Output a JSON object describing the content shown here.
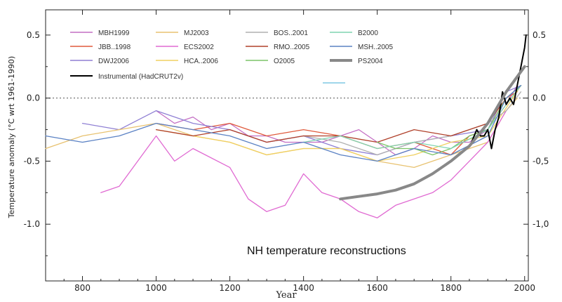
{
  "chart_data": {
    "type": "line",
    "title": "",
    "annotation": "NH temperature reconstructions",
    "xlabel": "Year",
    "ylabel": "Temperature anomaly (°C wrt 1961-1990)",
    "xlim": [
      700,
      2010
    ],
    "ylim": [
      -1.45,
      0.7
    ],
    "xticks": [
      800,
      1000,
      1200,
      1400,
      1600,
      1800,
      2000
    ],
    "xtick_labels": [
      "800",
      "1000",
      "1200",
      "1400",
      "1600",
      "1800",
      "2000"
    ],
    "yticks": [
      0.5,
      0.0,
      -0.5,
      -1.0
    ],
    "ytick_labels_left": [
      "0.5",
      "0.0",
      "-0.5",
      "-1.0"
    ],
    "ytick_labels_right": [
      "0.5",
      "0.0",
      "-0,5",
      "-1,0"
    ],
    "zero_line": "dotted",
    "legend_position": "top-left",
    "series": [
      {
        "name": "MBH1999",
        "color": "#c46fc4",
        "x": [
          1000,
          1050,
          1100,
          1150,
          1200,
          1250,
          1300,
          1350,
          1400,
          1450,
          1500,
          1550,
          1600,
          1650,
          1700,
          1750,
          1800,
          1850,
          1900,
          1950,
          1980
        ],
        "y": [
          -0.1,
          -0.2,
          -0.15,
          -0.25,
          -0.2,
          -0.3,
          -0.3,
          -0.35,
          -0.35,
          -0.35,
          -0.3,
          -0.25,
          -0.35,
          -0.45,
          -0.4,
          -0.3,
          -0.35,
          -0.35,
          -0.25,
          -0.05,
          0.1
        ]
      },
      {
        "name": "JBB..1998",
        "color": "#e05a3c",
        "x": [
          1000,
          1100,
          1200,
          1300,
          1400,
          1500,
          1600,
          1700,
          1800,
          1850,
          1900,
          1950,
          1980
        ],
        "y": [
          -0.2,
          -0.25,
          -0.2,
          -0.3,
          -0.25,
          -0.3,
          -0.4,
          -0.35,
          -0.45,
          -0.3,
          -0.25,
          0.0,
          0.05
        ]
      },
      {
        "name": "DWJ2006",
        "color": "#8f7fd4",
        "x": [
          800,
          900,
          1000,
          1100,
          1200,
          1300,
          1400,
          1500,
          1600,
          1700,
          1800,
          1900,
          1950,
          1990
        ],
        "y": [
          -0.2,
          -0.25,
          -0.1,
          -0.2,
          -0.25,
          -0.35,
          -0.3,
          -0.4,
          -0.45,
          -0.35,
          -0.3,
          -0.25,
          0.05,
          0.1
        ]
      },
      {
        "name": "MJ2003",
        "color": "#e8c270",
        "x": [
          700,
          800,
          900,
          1000,
          1100,
          1200,
          1300,
          1400,
          1500,
          1600,
          1700,
          1800,
          1900,
          1950,
          1980
        ],
        "y": [
          -0.4,
          -0.3,
          -0.25,
          -0.2,
          -0.3,
          -0.35,
          -0.45,
          -0.4,
          -0.4,
          -0.5,
          -0.55,
          -0.45,
          -0.35,
          -0.1,
          0.0
        ]
      },
      {
        "name": "ECS2002",
        "color": "#e06ad2",
        "x": [
          850,
          900,
          1000,
          1050,
          1100,
          1200,
          1250,
          1300,
          1350,
          1400,
          1450,
          1500,
          1550,
          1600,
          1650,
          1700,
          1750,
          1800,
          1850,
          1900,
          1950
        ],
        "y": [
          -0.75,
          -0.7,
          -0.3,
          -0.5,
          -0.4,
          -0.55,
          -0.8,
          -0.9,
          -0.85,
          -0.6,
          -0.75,
          -0.8,
          -0.9,
          -0.95,
          -0.85,
          -0.8,
          -0.75,
          -0.65,
          -0.5,
          -0.35,
          -0.1
        ]
      },
      {
        "name": "HCA..2006",
        "color": "#f0d060",
        "x": [
          1000,
          1100,
          1200,
          1300,
          1400,
          1500,
          1600,
          1700,
          1800,
          1900,
          1990
        ],
        "y": [
          -0.25,
          -0.3,
          -0.35,
          -0.45,
          -0.4,
          -0.4,
          -0.5,
          -0.45,
          -0.35,
          -0.3,
          0.1
        ]
      },
      {
        "name": "BOS..2001",
        "color": "#b0b0b0",
        "x": [
          1400,
          1500,
          1600,
          1700,
          1800,
          1900,
          1950,
          1990
        ],
        "y": [
          -0.3,
          -0.35,
          -0.45,
          -0.35,
          -0.3,
          -0.2,
          -0.1,
          0.05
        ]
      },
      {
        "name": "RMO..2005",
        "color": "#b0402a",
        "x": [
          1000,
          1100,
          1200,
          1300,
          1400,
          1500,
          1600,
          1700,
          1800,
          1900,
          1950,
          1990
        ],
        "y": [
          -0.25,
          -0.3,
          -0.25,
          -0.35,
          -0.3,
          -0.3,
          -0.35,
          -0.25,
          -0.3,
          -0.2,
          0.0,
          0.1
        ]
      },
      {
        "name": "O2005",
        "color": "#7cc468",
        "x": [
          1600,
          1650,
          1700,
          1750,
          1800,
          1850,
          1900,
          1950,
          1990
        ],
        "y": [
          -0.35,
          -0.4,
          -0.4,
          -0.45,
          -0.4,
          -0.3,
          -0.25,
          0.0,
          0.1
        ]
      },
      {
        "name": "B2000",
        "color": "#7fd4b0",
        "x": [
          1400,
          1500,
          1600,
          1700,
          1800,
          1900,
          1950,
          1990
        ],
        "y": [
          -0.35,
          -0.3,
          -0.4,
          -0.35,
          -0.4,
          -0.25,
          -0.05,
          0.1
        ]
      },
      {
        "name": "MSH..2005",
        "color": "#5b82c4",
        "x": [
          700,
          800,
          900,
          1000,
          1100,
          1200,
          1300,
          1400,
          1500,
          1600,
          1700,
          1800,
          1900,
          1950,
          1990
        ],
        "y": [
          -0.3,
          -0.35,
          -0.3,
          -0.2,
          -0.25,
          -0.3,
          -0.4,
          -0.35,
          -0.45,
          -0.5,
          -0.4,
          -0.45,
          -0.3,
          0.0,
          0.1
        ]
      },
      {
        "name": "PS2004",
        "color": "#888888",
        "width": 4,
        "x": [
          1500,
          1550,
          1600,
          1650,
          1700,
          1750,
          1800,
          1850,
          1900,
          1950,
          2000
        ],
        "y": [
          -0.8,
          -0.78,
          -0.76,
          -0.73,
          -0.68,
          -0.6,
          -0.5,
          -0.38,
          -0.2,
          0.05,
          0.25
        ]
      },
      {
        "name": "Instrumental (HadCRUT2v)",
        "color": "#000000",
        "width": 2,
        "x": [
          1856,
          1870,
          1880,
          1890,
          1900,
          1910,
          1920,
          1930,
          1940,
          1945,
          1950,
          1960,
          1970,
          1980,
          1990,
          2000,
          2004
        ],
        "y": [
          -0.35,
          -0.25,
          -0.3,
          -0.3,
          -0.25,
          -0.4,
          -0.25,
          -0.15,
          0.05,
          0.0,
          -0.05,
          0.0,
          -0.05,
          0.1,
          0.25,
          0.4,
          0.5
        ]
      }
    ],
    "extra_legend_swatch": {
      "color": "#7ec8e3"
    }
  }
}
